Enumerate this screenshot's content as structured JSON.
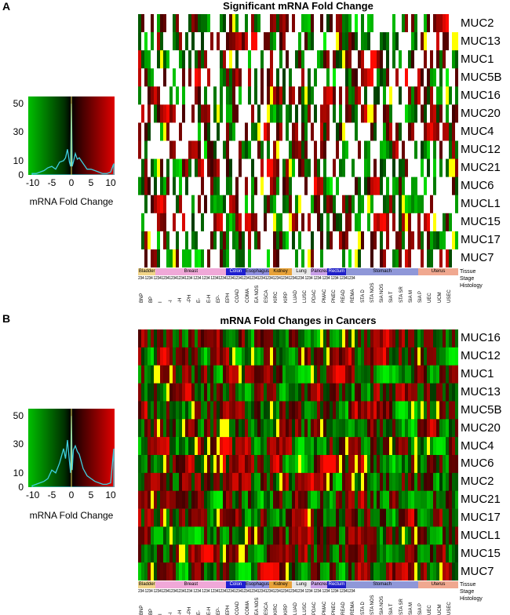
{
  "panels": [
    {
      "letter": "A",
      "title": "Significant mRNA Fold Change",
      "heatmap_labels": [
        "MUC2",
        "MUC13",
        "MUC1",
        "MUC5B",
        "MUC16",
        "MUC20",
        "MUC4",
        "MUC12",
        "MUC21",
        "MUC6",
        "MUCL1",
        "MUC15",
        "MUC17",
        "MUC7"
      ],
      "tissue_caption": "Tissue",
      "stage_caption": "Stage",
      "histology_caption": "Histology"
    },
    {
      "letter": "B",
      "title": "mRNA Fold Changes in Cancers",
      "heatmap_labels": [
        "MUC16",
        "MUC12",
        "MUC1",
        "MUC13",
        "MUC5B",
        "MUC20",
        "MUC4",
        "MUC6",
        "MUC2",
        "MUC21",
        "MUC17",
        "MUCL1",
        "MUC15",
        "MUC7"
      ],
      "tissue_caption": "Tissue",
      "stage_caption": "Stage",
      "histology_caption": "Histology"
    }
  ],
  "tissues": [
    {
      "name": "Bladder",
      "color": "#f2d58a"
    },
    {
      "name": "Breast",
      "color": "#f0a8d8"
    },
    {
      "name": "Colon",
      "color": "#1f1fd0"
    },
    {
      "name": "Esophagus",
      "color": "#8f8fe0"
    },
    {
      "name": "Kidney",
      "color": "#e8a33a"
    },
    {
      "name": "Lung",
      "color": "#e8e8e8"
    },
    {
      "name": "Pancreas",
      "color": "#c9a0e8"
    },
    {
      "name": "Rectum",
      "color": "#2020c8"
    },
    {
      "name": "Stomach",
      "color": "#8f97d8"
    },
    {
      "name": "Uterus",
      "color": "#f0a890"
    }
  ],
  "stage_text": "234 1234 12341234123412341234 1234 1234 123412341234123412341234123412341234123412341234 1234 1234 1234 1234 12341234",
  "histology": [
    "BNP",
    "BP",
    "I",
    "-I",
    "-H",
    "-PH",
    "E-",
    "E-H",
    "EP-",
    "EPH",
    "COAD",
    "COMA",
    "EA NOS",
    "ESCA",
    "KIRC",
    "KIRP",
    "LUAD",
    "LUSC",
    "PDAC",
    "PMAC",
    "PNEC",
    "READ",
    "REMA",
    "STA D",
    "STA NOS",
    "SIA NOS",
    "SIA T",
    "STA SR",
    "SIA M",
    "SIA P",
    "UEC",
    "UCM",
    "USEC"
  ],
  "chart_data": [
    {
      "type": "heatmap",
      "title": "Significant mRNA Fold Change",
      "rows": [
        "MUC2",
        "MUC13",
        "MUC1",
        "MUC5B",
        "MUC16",
        "MUC20",
        "MUC4",
        "MUC12",
        "MUC21",
        "MUC6",
        "MUCL1",
        "MUC15",
        "MUC17",
        "MUC7"
      ],
      "color_scale": {
        "negative": "#00b000",
        "zero": "#000000",
        "positive": "#e00000",
        "saturated": "#ffff00",
        "not_significant": "#ffffff"
      },
      "value_range": [
        -10,
        10
      ]
    },
    {
      "type": "heatmap",
      "title": "mRNA Fold Changes in Cancers",
      "rows": [
        "MUC16",
        "MUC12",
        "MUC1",
        "MUC13",
        "MUC5B",
        "MUC20",
        "MUC4",
        "MUC6",
        "MUC2",
        "MUC21",
        "MUC17",
        "MUCL1",
        "MUC15",
        "MUC7"
      ],
      "color_scale": {
        "negative": "#00b000",
        "zero": "#000000",
        "positive": "#e00000",
        "saturated": "#ffff00"
      },
      "value_range": [
        -10,
        10
      ]
    },
    {
      "type": "area",
      "title": "",
      "xlabel": "mRNA Fold Change",
      "ylabel": "",
      "xlim": [
        -11,
        11
      ],
      "ylim": [
        0,
        55
      ],
      "x_ticks": [
        "-10",
        "-5",
        "0",
        "5",
        "10"
      ],
      "y_ticks": [
        "0",
        "10",
        "30",
        "50"
      ],
      "x": [
        -10,
        -9,
        -8,
        -7,
        -6,
        -5,
        -4,
        -3,
        -2,
        -1.5,
        -1,
        -0.5,
        -0.2,
        0,
        0.2,
        0.5,
        1,
        1.5,
        2,
        3,
        4,
        5,
        6,
        7,
        8,
        9,
        10,
        10.8
      ],
      "values": [
        1,
        1,
        2,
        3,
        5,
        6,
        4,
        9,
        10,
        12,
        18,
        9,
        6,
        50,
        6,
        9,
        15,
        11,
        12,
        8,
        4,
        4,
        3,
        2,
        1,
        1,
        2,
        8
      ]
    },
    {
      "type": "area",
      "title": "",
      "xlabel": "mRNA Fold Change",
      "ylabel": "",
      "xlim": [
        -11,
        11
      ],
      "ylim": [
        0,
        55
      ],
      "x_ticks": [
        "-10",
        "-5",
        "0",
        "5",
        "10"
      ],
      "y_ticks": [
        "0",
        "10",
        "30",
        "50"
      ],
      "x": [
        -10,
        -9,
        -8,
        -7,
        -6,
        -5,
        -4,
        -3,
        -2,
        -1.5,
        -1,
        -0.5,
        -0.2,
        0,
        0.2,
        0.5,
        1,
        1.5,
        2,
        3,
        4,
        5,
        6,
        7,
        8,
        9,
        10,
        10.8
      ],
      "values": [
        1,
        2,
        3,
        4,
        6,
        12,
        10,
        17,
        27,
        20,
        33,
        18,
        10,
        50,
        12,
        26,
        29,
        25,
        23,
        13,
        8,
        6,
        4,
        3,
        2,
        2,
        3,
        27
      ]
    }
  ]
}
